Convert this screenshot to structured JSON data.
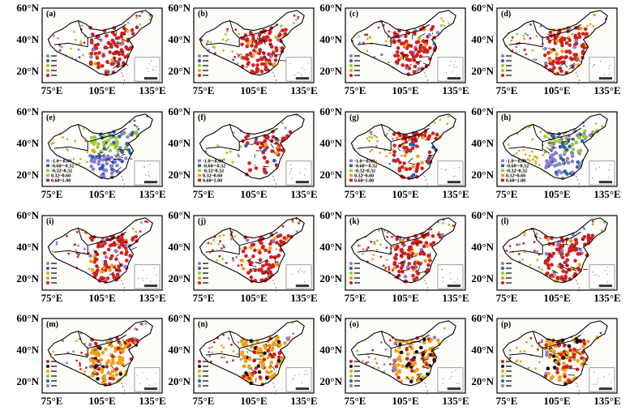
{
  "chart_data": {
    "type": "map-grid",
    "panels": [
      {
        "label": "(a)",
        "scheme": "A"
      },
      {
        "label": "(b)",
        "scheme": "A"
      },
      {
        "label": "(c)",
        "scheme": "A"
      },
      {
        "label": "(d)",
        "scheme": "A"
      },
      {
        "label": "(e)",
        "scheme": "B"
      },
      {
        "label": "(f)",
        "scheme": "B"
      },
      {
        "label": "(g)",
        "scheme": "B"
      },
      {
        "label": "(h)",
        "scheme": "B"
      },
      {
        "label": "(i)",
        "scheme": "A"
      },
      {
        "label": "(j)",
        "scheme": "A"
      },
      {
        "label": "(k)",
        "scheme": "A"
      },
      {
        "label": "(l)",
        "scheme": "A"
      },
      {
        "label": "(m)",
        "scheme": "C"
      },
      {
        "label": "(n)",
        "scheme": "C"
      },
      {
        "label": "(o)",
        "scheme": "C"
      },
      {
        "label": "(p)",
        "scheme": "C"
      }
    ],
    "x_ticks": [
      "75°E",
      "105°E",
      "135°E"
    ],
    "y_ticks": [
      "60°N",
      "40°N",
      "20°N"
    ],
    "legend_schemes": {
      "A": {
        "colors": [
          "#8a7fd6",
          "#2f5fa8",
          "#9acd32",
          "#f2a010",
          "#d21f1f"
        ]
      },
      "B": {
        "items": [
          {
            "label": "-1.0~-0.60",
            "color": "#8a7fd6"
          },
          {
            "label": "-0.60~-0.32",
            "color": "#2f5fa8"
          },
          {
            "label": "-0.32~0.32",
            "color": "#9acd32"
          },
          {
            "label": "0.32~0.60",
            "color": "#f2a010"
          },
          {
            "label": "0.60~1.00",
            "color": "#d21f1f"
          }
        ]
      },
      "C": {
        "colors": [
          "#d21f1f",
          "#111111",
          "#f2a010",
          "#9acd32",
          "#2f5fa8",
          "#8a7fd6"
        ]
      }
    }
  }
}
